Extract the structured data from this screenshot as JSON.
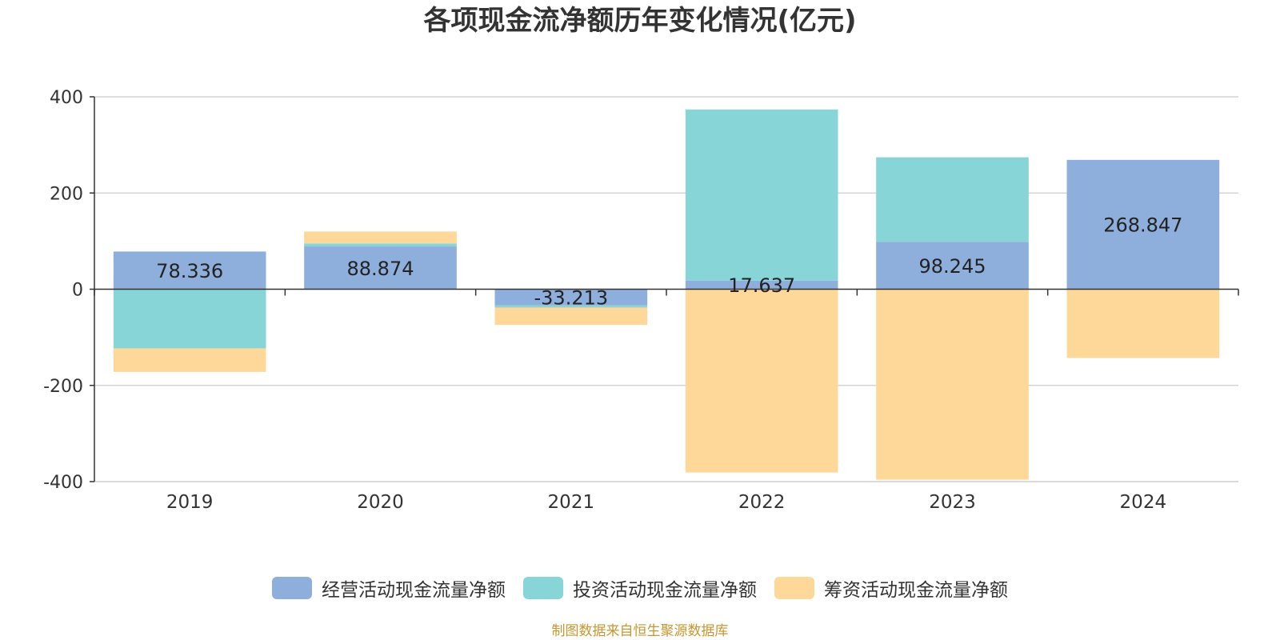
{
  "chart_data": {
    "type": "bar",
    "stacked": true,
    "title": "各项现金流净额历年变化情况(亿元)",
    "categories": [
      "2019",
      "2020",
      "2021",
      "2022",
      "2023",
      "2024"
    ],
    "ylim": [
      -400,
      400
    ],
    "yticks": [
      400,
      200,
      0,
      -200,
      -400
    ],
    "grid": true,
    "legend_position": "bottom",
    "series": [
      {
        "name": "经营活动现金流量净额",
        "color": "#8eaedb",
        "values": [
          78.336,
          88.874,
          -33.213,
          17.637,
          98.245,
          268.847
        ],
        "labels": [
          "78.336",
          "88.874",
          "-33.213",
          "17.637",
          "98.245",
          "268.847"
        ]
      },
      {
        "name": "投资活动现金流量净额",
        "color": "#88d5d8",
        "values": [
          -123,
          6,
          -5,
          356,
          176,
          0
        ]
      },
      {
        "name": "筹资活动现金流量净额",
        "color": "#fed898",
        "values": [
          -49,
          25,
          -36,
          -381,
          -396,
          -143
        ]
      }
    ]
  },
  "source_note": "制图数据来自恒生聚源数据库"
}
